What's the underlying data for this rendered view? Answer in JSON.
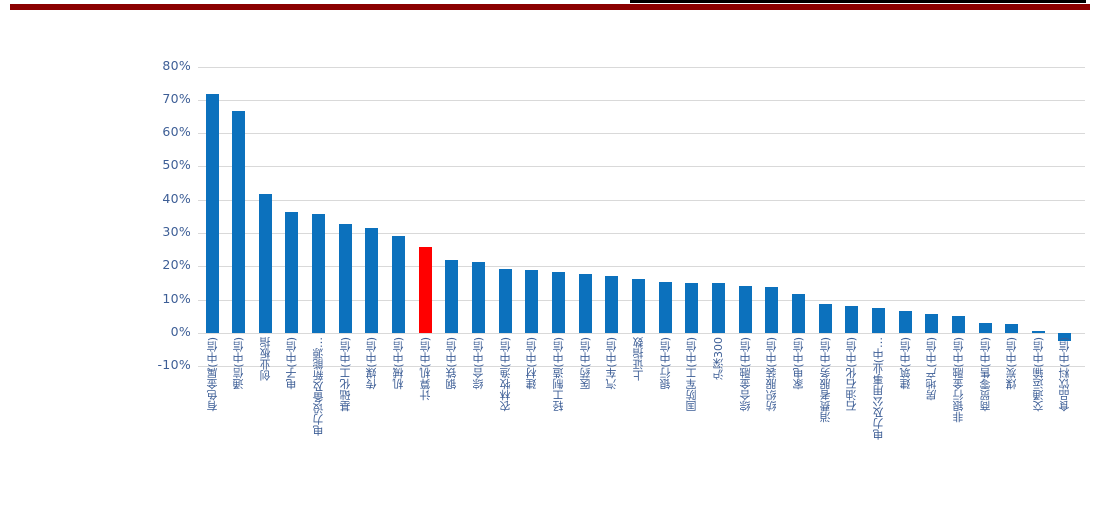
{
  "page": {
    "background": "#ffffff",
    "top_black_rule_color": "#000000",
    "top_red_rule_color": "#8b0000"
  },
  "chart_data": {
    "type": "bar",
    "title": "",
    "xlabel": "",
    "ylabel": "",
    "categories": [
      "有色金属(中信)",
      "通信(中信)",
      "创业板指",
      "电子(中信)",
      "电力设备及新能源…",
      "基础化工(中信)",
      "传媒(中信)",
      "机械(中信)",
      "计算机(中信)",
      "钢铁(中信)",
      "综合(中信)",
      "农林牧渔(中信)",
      "建材(中信)",
      "轻工制造(中信)",
      "医药(中信)",
      "汽车(中信)",
      "上证指数",
      "银行(中信)",
      "国防军工(中信)",
      "沪深300",
      "综合金融(中信)",
      "纺织服装(中信)",
      "家电(中信)",
      "消费者服务(中信)",
      "石油石化(中信)",
      "电力及公用事业(中…",
      "建筑(中信)",
      "房地产(中信)",
      "非银行金融(中信)",
      "商贸零售(中信)",
      "煤炭(中信)",
      "交通运输(中信)",
      "食品饮料(中信)"
    ],
    "values": [
      71.9,
      66.5,
      41.6,
      36.2,
      35.8,
      32.6,
      31.4,
      29.0,
      25.8,
      21.9,
      21.3,
      19.3,
      18.8,
      18.4,
      17.7,
      17.1,
      16.2,
      15.3,
      15.0,
      14.9,
      14.1,
      13.9,
      11.6,
      8.7,
      8.0,
      7.5,
      6.6,
      5.7,
      5.1,
      3.0,
      2.5,
      0.4,
      -2.5
    ],
    "highlight_index": 8,
    "highlight_category": "计算机(中信)",
    "ytick_labels": [
      "80%",
      "70%",
      "60%",
      "50%",
      "40%",
      "30%",
      "20%",
      "10%",
      "0%",
      "-10%"
    ],
    "ytick_values": [
      80,
      70,
      60,
      50,
      40,
      30,
      20,
      10,
      0,
      -10
    ],
    "ylim": [
      -10,
      80
    ],
    "grid": true,
    "legend": false,
    "colors": {
      "bar": "#0c71bd",
      "highlight": "#ff0000",
      "gridline": "#d9d9d9",
      "axis_line": "#d9d9d9",
      "tick_label": "#3d5e96",
      "category_label": "#3d5e96"
    }
  }
}
